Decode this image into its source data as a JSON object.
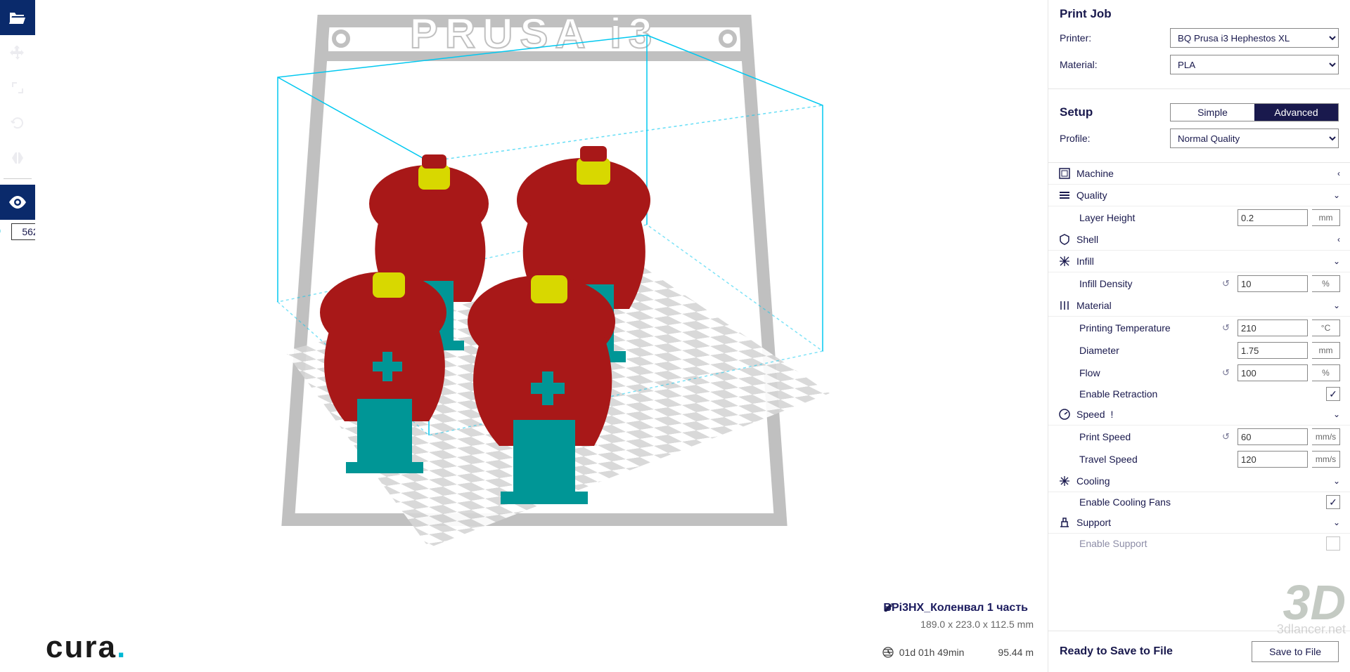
{
  "toolbar": {
    "layer_value": "562",
    "slider_min": 0,
    "slider_max": 562
  },
  "viewport": {
    "frame_text": "PRUSA i3",
    "model_name": "BPi3HX_Коленвал 1 часть",
    "dimensions": "189.0 x 223.0 x 112.5 mm",
    "time": "01d 01h 49min",
    "filament": "95.44 m",
    "logo_text": "cura",
    "bbox_color": "#00c8f0",
    "model_red": "#a81818",
    "model_yellow": "#d8d800",
    "support_teal": "#009696",
    "frame_gray": "#c0c0c0"
  },
  "panel": {
    "print_job_title": "Print Job",
    "printer_label": "Printer:",
    "printer_value": "BQ Prusa i3 Hephestos XL",
    "material_label": "Material:",
    "material_value": "PLA",
    "setup_title": "Setup",
    "tab_simple": "Simple",
    "tab_advanced": "Advanced",
    "profile_label": "Profile:",
    "profile_value": "Normal Quality",
    "save_title": "Ready to Save to File",
    "save_btn": "Save to File"
  },
  "settings": {
    "categories": [
      {
        "name": "Machine",
        "expanded": false
      },
      {
        "name": "Quality",
        "expanded": true,
        "fields": [
          {
            "label": "Layer Height",
            "value": "0.2",
            "unit": "mm"
          }
        ]
      },
      {
        "name": "Shell",
        "expanded": false
      },
      {
        "name": "Infill",
        "expanded": true,
        "fields": [
          {
            "label": "Infill Density",
            "value": "10",
            "unit": "%",
            "reset": true
          }
        ]
      },
      {
        "name": "Material",
        "expanded": true,
        "fields": [
          {
            "label": "Printing Temperature",
            "value": "210",
            "unit": "°C",
            "reset": true
          },
          {
            "label": "Diameter",
            "value": "1.75",
            "unit": "mm"
          },
          {
            "label": "Flow",
            "value": "100",
            "unit": "%",
            "reset": true
          },
          {
            "label": "Enable Retraction",
            "checkbox": true,
            "checked": true
          }
        ]
      },
      {
        "name": "Speed",
        "expanded": true,
        "info": true,
        "fields": [
          {
            "label": "Print Speed",
            "value": "60",
            "unit": "mm/s",
            "reset": true
          },
          {
            "label": "Travel Speed",
            "value": "120",
            "unit": "mm/s"
          }
        ]
      },
      {
        "name": "Cooling",
        "expanded": true,
        "fields": [
          {
            "label": "Enable Cooling Fans",
            "checkbox": true,
            "checked": true
          }
        ]
      },
      {
        "name": "Support",
        "expanded": true,
        "fields": [
          {
            "label": "Enable Support",
            "checkbox": true,
            "checked": false,
            "faded": true
          }
        ]
      }
    ]
  },
  "watermark": {
    "big": "3D",
    "small": "3dlancer.net"
  }
}
